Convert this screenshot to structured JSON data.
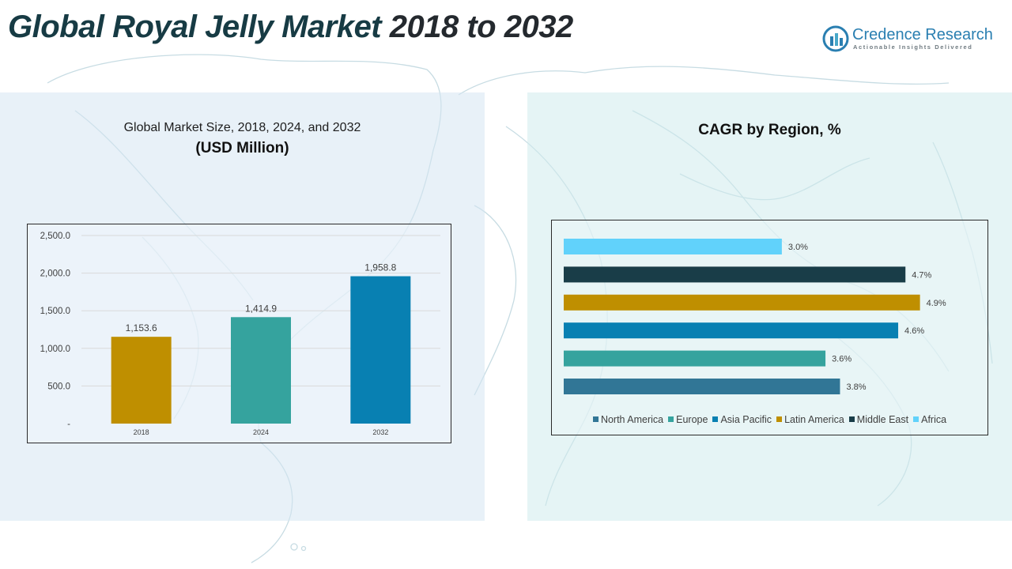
{
  "header": {
    "title_part1": "Global Royal Jelly Market",
    "title_part2": " 2018 to 2032",
    "brand_name": "Credence Research",
    "brand_tagline": "Actionable Insights Delivered",
    "brand_icon": "credence-logo-icon"
  },
  "left_panel": {
    "title": "Global Market Size, 2018, 2024, and 2032",
    "subtitle": "(USD Million)"
  },
  "right_panel": {
    "title": "CAGR by Region, %"
  },
  "colors": {
    "gold": "#BF8F00",
    "teal": "#35A39E",
    "blue": "#0880B2",
    "steel_blue": "#317696",
    "dark_navy": "#193D48",
    "light_blue": "#61D2FB",
    "title_dark": "#173B44"
  },
  "chart_data": [
    {
      "type": "bar",
      "title": "Global Market Size, 2018, 2024, and 2032",
      "subtitle": "(USD Million)",
      "categories": [
        "2018",
        "2024",
        "2032"
      ],
      "values": [
        1153.6,
        1414.9,
        1958.8
      ],
      "value_labels": [
        "1,153.6",
        "1,414.9",
        "1,958.8"
      ],
      "bar_colors": [
        "#BF8F00",
        "#35A39E",
        "#0880B2"
      ],
      "ylim": [
        0,
        2500
      ],
      "yticks": [
        0,
        500,
        1000,
        1500,
        2000,
        2500
      ],
      "ytick_labels": [
        "-",
        "500.0",
        "1,000.0",
        "1,500.0",
        "2,000.0",
        "2,500.0"
      ],
      "grid": true
    },
    {
      "type": "bar",
      "orientation": "horizontal",
      "title": "CAGR by Region, %",
      "categories": [
        "North America",
        "Europe",
        "Asia Pacific",
        "Latin America",
        "Middle East",
        "Africa"
      ],
      "values": [
        3.8,
        3.6,
        4.6,
        4.9,
        4.7,
        3.0
      ],
      "value_labels": [
        "3.8%",
        "3.6%",
        "4.6%",
        "4.9%",
        "4.7%",
        "3.0%"
      ],
      "bar_colors": [
        "#317696",
        "#35A39E",
        "#0880B2",
        "#BF8F00",
        "#193D48",
        "#61D2FB"
      ],
      "xlim": [
        0,
        5.6
      ],
      "legend": "bottom",
      "grid": false
    }
  ]
}
